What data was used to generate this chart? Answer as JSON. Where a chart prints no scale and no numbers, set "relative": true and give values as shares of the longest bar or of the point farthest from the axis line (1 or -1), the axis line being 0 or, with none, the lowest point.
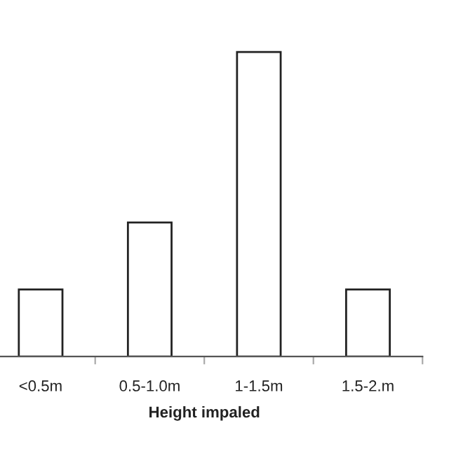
{
  "chart_data": {
    "type": "bar",
    "xlabel": "Height impaled",
    "categories": [
      "<0.5m",
      "0.5-1.0m",
      "1-1.5m",
      "1.5-2.m"
    ],
    "values": [
      0.22,
      0.44,
      1,
      0.22
    ],
    "color": "#ffffff",
    "relative": true,
    "grid": false,
    "legend": false
  }
}
